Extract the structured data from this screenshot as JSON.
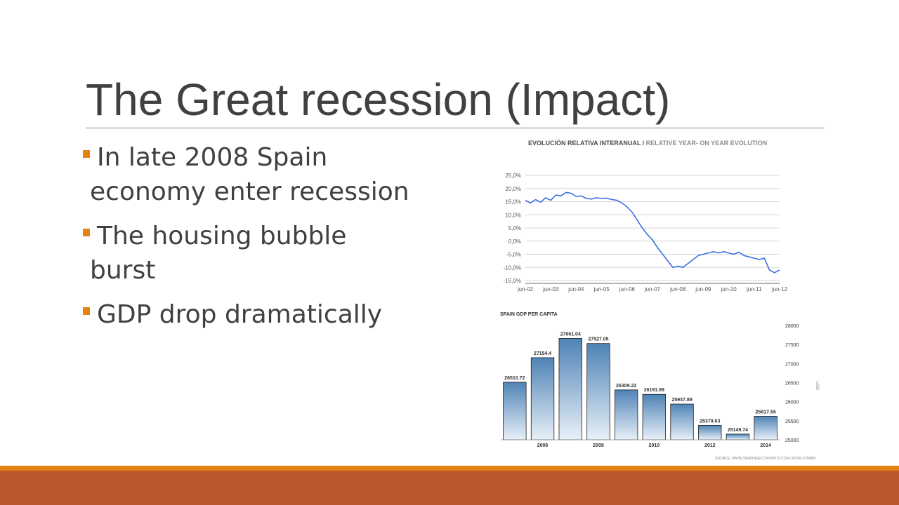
{
  "slide": {
    "title": "The Great recession (Impact)",
    "bullets": [
      {
        "text": "In late 2008 Spain economy enter recession"
      },
      {
        "text": "The housing bubble burst"
      },
      {
        "text": "GDP drop dramatically"
      }
    ]
  },
  "colors": {
    "accent_orange": "#e48312",
    "footer_band": "#bd582c",
    "title_text": "#404040",
    "line_series": "#3a6fe0",
    "bar_top": "#4f83b6",
    "bar_bottom": "#e8f0f8"
  },
  "chart_data": [
    {
      "type": "line",
      "title_part1": "EVOLUCIÓN RELATIVA INTERANUAL / ",
      "title_part2": "RELATIVE YEAR- ON YEAR EVOLUTION",
      "y_ticks": [
        "25,0%",
        "20,0%",
        "15,0%",
        "10,0%",
        "5,0%",
        "0,0%",
        "-5,0%",
        "-10,0%",
        "-15,0%"
      ],
      "y_tick_values": [
        25,
        20,
        15,
        10,
        5,
        0,
        -5,
        -10,
        -15
      ],
      "ylim": [
        -15,
        25
      ],
      "x_ticks": [
        "jun-02",
        "jun-03",
        "jun-04",
        "jun-05",
        "jun-06",
        "jun-07",
        "jun-08",
        "jun-09",
        "jun-10",
        "jun-11",
        "jun-12"
      ],
      "xlim": [
        2002.5,
        2012.5
      ],
      "grid": true,
      "series": [
        {
          "x": [
            2002.5,
            2002.7,
            2002.9,
            2003.1,
            2003.3,
            2003.5,
            2003.7,
            2003.9,
            2004.1,
            2004.3,
            2004.5,
            2004.7,
            2004.9,
            2005.1,
            2005.3,
            2005.5,
            2005.7,
            2005.9,
            2006.1,
            2006.3,
            2006.5,
            2006.7,
            2006.9,
            2007.1,
            2007.3,
            2007.5,
            2007.7,
            2007.9,
            2008.1,
            2008.3,
            2008.5,
            2008.7,
            2008.9,
            2009.1,
            2009.3,
            2009.5,
            2009.7,
            2009.9,
            2010.1,
            2010.3,
            2010.5,
            2010.7,
            2010.9,
            2011.1,
            2011.3,
            2011.5,
            2011.7,
            2011.9,
            2012.1,
            2012.3,
            2012.5
          ],
          "y": [
            15.5,
            14.5,
            15.8,
            14.8,
            16.5,
            15.5,
            17.5,
            17.2,
            18.5,
            18.2,
            17.0,
            17.2,
            16.2,
            16.0,
            16.5,
            16.2,
            16.3,
            15.8,
            15.5,
            14.5,
            13.0,
            11.0,
            8.0,
            5.0,
            2.5,
            0.5,
            -2.5,
            -5.0,
            -7.5,
            -10.0,
            -9.5,
            -10.0,
            -8.5,
            -7.0,
            -5.5,
            -5.0,
            -4.5,
            -4.0,
            -4.5,
            -4.0,
            -4.5,
            -5.0,
            -4.2,
            -5.5,
            -6.0,
            -6.5,
            -7.0,
            -6.5,
            -11.0,
            -12.0,
            -11.0
          ]
        }
      ]
    },
    {
      "type": "bar",
      "title": "SPAIN GDP PER CAPITA",
      "x": [
        2005,
        2006,
        2007,
        2008,
        2009,
        2010,
        2011,
        2012,
        2013,
        2014
      ],
      "values": [
        26510.72,
        27154.4,
        27661.04,
        27527.05,
        26309.22,
        26191.99,
        25937.89,
        25379.63,
        25149.74,
        25617.55
      ],
      "value_labels": [
        "26510.72",
        "27154.4",
        "27661.04",
        "27527.05",
        "26309.22",
        "26191.99",
        "25937.89",
        "25379.63",
        "25149.74",
        "25617.55"
      ],
      "x_tick_labels": [
        "2006",
        "2008",
        "2010",
        "2012",
        "2014"
      ],
      "x_tick_values": [
        2006,
        2008,
        2010,
        2012,
        2014
      ],
      "y_ticks": [
        "28000",
        "27500",
        "27000",
        "26500",
        "26000",
        "25500",
        "25000"
      ],
      "y_tick_values": [
        28000,
        27500,
        27000,
        26500,
        26000,
        25500,
        25000
      ],
      "ylim": [
        25000,
        28000
      ],
      "ylabel": "USD",
      "source": "SOURCE: WWW.TRADINGECONOMICS.COM | WORLD BANK",
      "grid": false
    }
  ]
}
